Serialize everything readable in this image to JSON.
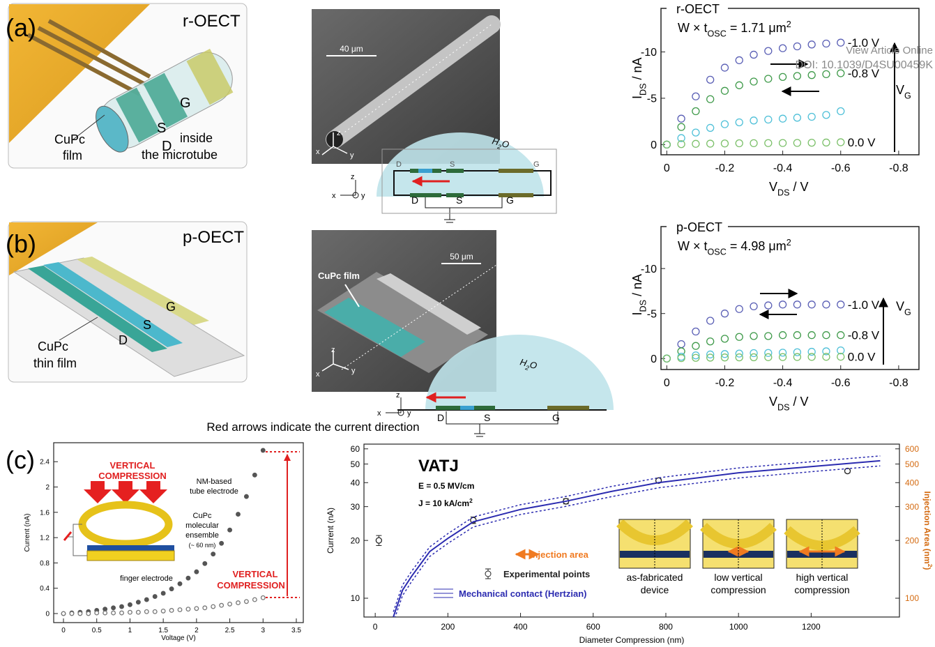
{
  "watermark": [
    "View Article Online",
    "DOI: 10.1039/D4SU00459K"
  ],
  "caption": "Red arrows indicate the current direction",
  "panel_a": {
    "label": "(a)",
    "device": "r-OECT",
    "film": [
      "CuPc",
      "film"
    ],
    "electrodes": [
      "G",
      "S",
      "D"
    ],
    "inside": [
      "inside",
      "the microtube"
    ],
    "scale_bar": "40 μm",
    "sem_axes": [
      "z",
      "x",
      "y"
    ],
    "water": [
      "H",
      "2",
      "O"
    ],
    "schematic_axes": [
      "z",
      "x",
      "y"
    ],
    "schematic_top": [
      "D",
      "S",
      "G"
    ],
    "schematic_bottom": [
      "D",
      "S",
      "G"
    ]
  },
  "panel_b": {
    "label": "(b)",
    "device": "p-OECT",
    "film": [
      "CuPc",
      "thin film"
    ],
    "electrodes": [
      "G",
      "S",
      "D"
    ],
    "scale_bar": "50 μm",
    "sem_film": "CuPc film",
    "sem_axes": [
      "z",
      "x",
      "y"
    ],
    "water": [
      "H",
      "2",
      "O"
    ],
    "schematic_axes": [
      "z",
      "x",
      "y"
    ],
    "schematic_bottom": [
      "D",
      "S",
      "G"
    ]
  },
  "panel_c": {
    "label": "(c)"
  },
  "chart_data": [
    {
      "type": "scatter",
      "title": "r-OECT",
      "note": [
        "W × t",
        "OSC",
        " = 1.71 μm",
        "2"
      ],
      "xlabel": [
        "V",
        "DS",
        " / V"
      ],
      "ylabel": [
        "I",
        "DS",
        " / nA"
      ],
      "gate": [
        "V",
        "G"
      ],
      "x": [
        0,
        -0.05,
        -0.1,
        -0.15,
        -0.2,
        -0.25,
        -0.3,
        -0.35,
        -0.4,
        -0.45,
        -0.5,
        -0.55,
        -0.6
      ],
      "series": [
        {
          "name": "-1.0 V",
          "color": "#5a5fb5",
          "marker": "open",
          "values": [
            0,
            -2.8,
            -5.2,
            -7,
            -8.3,
            -9.1,
            -9.7,
            -10.1,
            -10.4,
            -10.6,
            -10.8,
            -10.9,
            -11
          ]
        },
        {
          "name": "-0.8 V",
          "color": "#3f9a4a",
          "marker": "open",
          "values": [
            0,
            -1.9,
            -3.6,
            -4.9,
            -5.8,
            -6.4,
            -6.8,
            -7.1,
            -7.3,
            -7.4,
            -7.5,
            -7.6,
            -7.7
          ]
        },
        {
          "color": "#4fc0d8",
          "marker": "open",
          "values": [
            0,
            -0.7,
            -1.3,
            -1.8,
            -2.2,
            -2.4,
            -2.6,
            -2.7,
            -2.8,
            -2.9,
            -3,
            -3.2,
            -3.6
          ]
        },
        {
          "name": "0.0 V",
          "color": "#7cc06a",
          "marker": "open",
          "values": [
            0,
            -0.05,
            -0.08,
            -0.1,
            -0.12,
            -0.14,
            -0.15,
            -0.16,
            -0.17,
            -0.18,
            -0.2,
            -0.22,
            -0.25
          ]
        }
      ],
      "xlim": [
        0.02,
        -0.87
      ],
      "ylim": [
        1.1,
        -14.7
      ],
      "xticks": [
        0,
        -0.2,
        -0.4,
        -0.6,
        -0.8
      ],
      "yticks": [
        0,
        -5,
        -10
      ]
    },
    {
      "type": "scatter",
      "title": "p-OECT",
      "note": [
        "W × t",
        "OSC",
        " = 4.98 μm",
        "2"
      ],
      "xlabel": [
        "V",
        "DS",
        " / V"
      ],
      "ylabel": [
        "I",
        "DS",
        " / nA"
      ],
      "gate": [
        "V",
        "G"
      ],
      "x": [
        0,
        -0.05,
        -0.1,
        -0.15,
        -0.2,
        -0.25,
        -0.3,
        -0.35,
        -0.4,
        -0.45,
        -0.5,
        -0.55,
        -0.6
      ],
      "series": [
        {
          "name": "-1.0 V",
          "color": "#5a5fb5",
          "marker": "open",
          "values": [
            0,
            -1.6,
            -3,
            -4.2,
            -5,
            -5.5,
            -5.8,
            -5.9,
            -6,
            -6,
            -6,
            -6,
            -6
          ]
        },
        {
          "name": "-0.8 V",
          "color": "#3f9a4a",
          "marker": "open",
          "values": [
            0,
            -0.8,
            -1.4,
            -1.9,
            -2.2,
            -2.4,
            -2.5,
            -2.5,
            -2.6,
            -2.6,
            -2.6,
            -2.6,
            -2.6
          ]
        },
        {
          "color": "#4fc0d8",
          "marker": "open",
          "values": [
            0,
            -0.2,
            -0.35,
            -0.45,
            -0.5,
            -0.55,
            -0.6,
            -0.62,
            -0.65,
            -0.7,
            -0.75,
            -0.8,
            -0.9
          ]
        },
        {
          "name": "0.0 V",
          "color": "#7cc06a",
          "marker": "open",
          "values": [
            0,
            -0.05,
            -0.08,
            -0.1,
            -0.12,
            -0.13,
            -0.14,
            -0.15,
            -0.16,
            -0.17,
            -0.18,
            -0.19,
            -0.2
          ]
        }
      ],
      "xlim": [
        0.02,
        -0.87
      ],
      "ylim": [
        1.22,
        -14.66
      ],
      "xticks": [
        0,
        -0.2,
        -0.4,
        -0.6,
        -0.8
      ],
      "yticks": [
        0,
        -5,
        -10
      ]
    },
    {
      "type": "scatter",
      "xlabel": "Voltage (V)",
      "ylabel": "Current (nA)",
      "annotations": {
        "compression_top": [
          "VERTICAL",
          "COMPRESSION"
        ],
        "tube": [
          "NM-based",
          "tube electrode"
        ],
        "cupc": [
          "CuPc",
          "molecular",
          "ensemble",
          "(~ 60 nm)"
        ],
        "finger": "finger electrode",
        "compression_side": [
          "VERTICAL",
          "COMPRESSION"
        ]
      },
      "x": [
        0,
        0.125,
        0.25,
        0.375,
        0.5,
        0.625,
        0.75,
        0.875,
        1,
        1.125,
        1.25,
        1.375,
        1.5,
        1.625,
        1.75,
        1.875,
        2,
        2.125,
        2.25,
        2.375,
        2.5,
        2.625,
        2.75,
        2.875,
        3
      ],
      "series": [
        {
          "color": "#555555",
          "marker": "filled",
          "values": [
            0,
            0.01,
            0.02,
            0.03,
            0.05,
            0.07,
            0.09,
            0.11,
            0.14,
            0.18,
            0.22,
            0.27,
            0.32,
            0.39,
            0.47,
            0.56,
            0.66,
            0.79,
            0.94,
            1.11,
            1.32,
            1.57,
            1.85,
            2.19,
            2.58
          ]
        },
        {
          "color": "#777777",
          "marker": "open",
          "values": [
            0,
            0,
            0,
            0,
            0.01,
            0.01,
            0.01,
            0.01,
            0.02,
            0.02,
            0.03,
            0.03,
            0.04,
            0.05,
            0.06,
            0.07,
            0.08,
            0.09,
            0.11,
            0.13,
            0.15,
            0.17,
            0.19,
            0.22,
            0.25
          ]
        }
      ],
      "xlim": [
        -0.147,
        3.605
      ],
      "ylim": [
        -0.143,
        2.7
      ],
      "xticks": [
        0,
        0.5,
        1,
        1.5,
        2,
        2.5,
        3,
        3.5
      ],
      "yticks": [
        0,
        0.4,
        0.8,
        1.2,
        1.6,
        2,
        2.4
      ]
    },
    {
      "type": "line",
      "title": "VATJ",
      "conditions": {
        "e": "E = 0.5 MV/cm",
        "j": [
          "J = 10 kA/cm",
          "2"
        ]
      },
      "xlabel": "Diameter Compression (nm)",
      "ylabel": "Current (nA)",
      "y2label": [
        "Injection Area (nm",
        "2",
        ")"
      ],
      "y2color": "#d46a10",
      "ylog": true,
      "legend_extra": "Injection area",
      "insets": [
        [
          "as-fabricated",
          "device"
        ],
        [
          "low vertical",
          "compression"
        ],
        [
          "high vertical",
          "compression"
        ]
      ],
      "series": [
        {
          "name": "Experimental points",
          "type": "scatter",
          "marker": "open",
          "color": "#222222",
          "x": [
            10,
            270,
            525,
            780,
            1300
          ],
          "values": [
            20,
            25.5,
            32,
            41,
            46
          ],
          "errors": [
            1.2,
            1,
            1,
            1,
            1
          ]
        },
        {
          "name": "Mechanical contact (Hertzian)",
          "color": "#2b2bb0",
          "x": [
            50,
            75,
            100,
            150,
            200,
            270,
            400,
            525,
            650,
            780,
            1000,
            1200,
            1390
          ],
          "values": [
            8,
            11,
            13,
            17.5,
            20.5,
            25,
            29,
            32,
            36,
            40,
            45,
            48.5,
            52
          ]
        },
        {
          "color": "#2b2bb0",
          "dash": true,
          "x": [
            50,
            75,
            100,
            150,
            200,
            270,
            400,
            525,
            650,
            780,
            1000,
            1200,
            1390
          ],
          "values": [
            8.5,
            11.7,
            13.8,
            18.5,
            21.7,
            26.5,
            30.7,
            33.9,
            38.2,
            42.4,
            47.7,
            51.4,
            55.1
          ]
        },
        {
          "color": "#2b2bb0",
          "dash": true,
          "x": [
            50,
            75,
            100,
            150,
            200,
            270,
            400,
            525,
            650,
            780,
            1000,
            1200,
            1390
          ],
          "values": [
            7.5,
            10.3,
            12.2,
            16.5,
            19.3,
            23.5,
            27.3,
            30.1,
            33.8,
            37.6,
            42.3,
            45.6,
            48.9
          ]
        }
      ],
      "xlim": [
        -31,
        1443
      ],
      "ylim": [
        7.98,
        63.5
      ],
      "xticks": [
        0,
        200,
        400,
        600,
        800,
        1000,
        1200
      ],
      "yticks": [
        10,
        20,
        30,
        40,
        50,
        60
      ],
      "y2lim": [
        79.8,
        635
      ],
      "y2ticks": [
        100,
        200,
        300,
        400,
        500,
        600
      ]
    }
  ]
}
